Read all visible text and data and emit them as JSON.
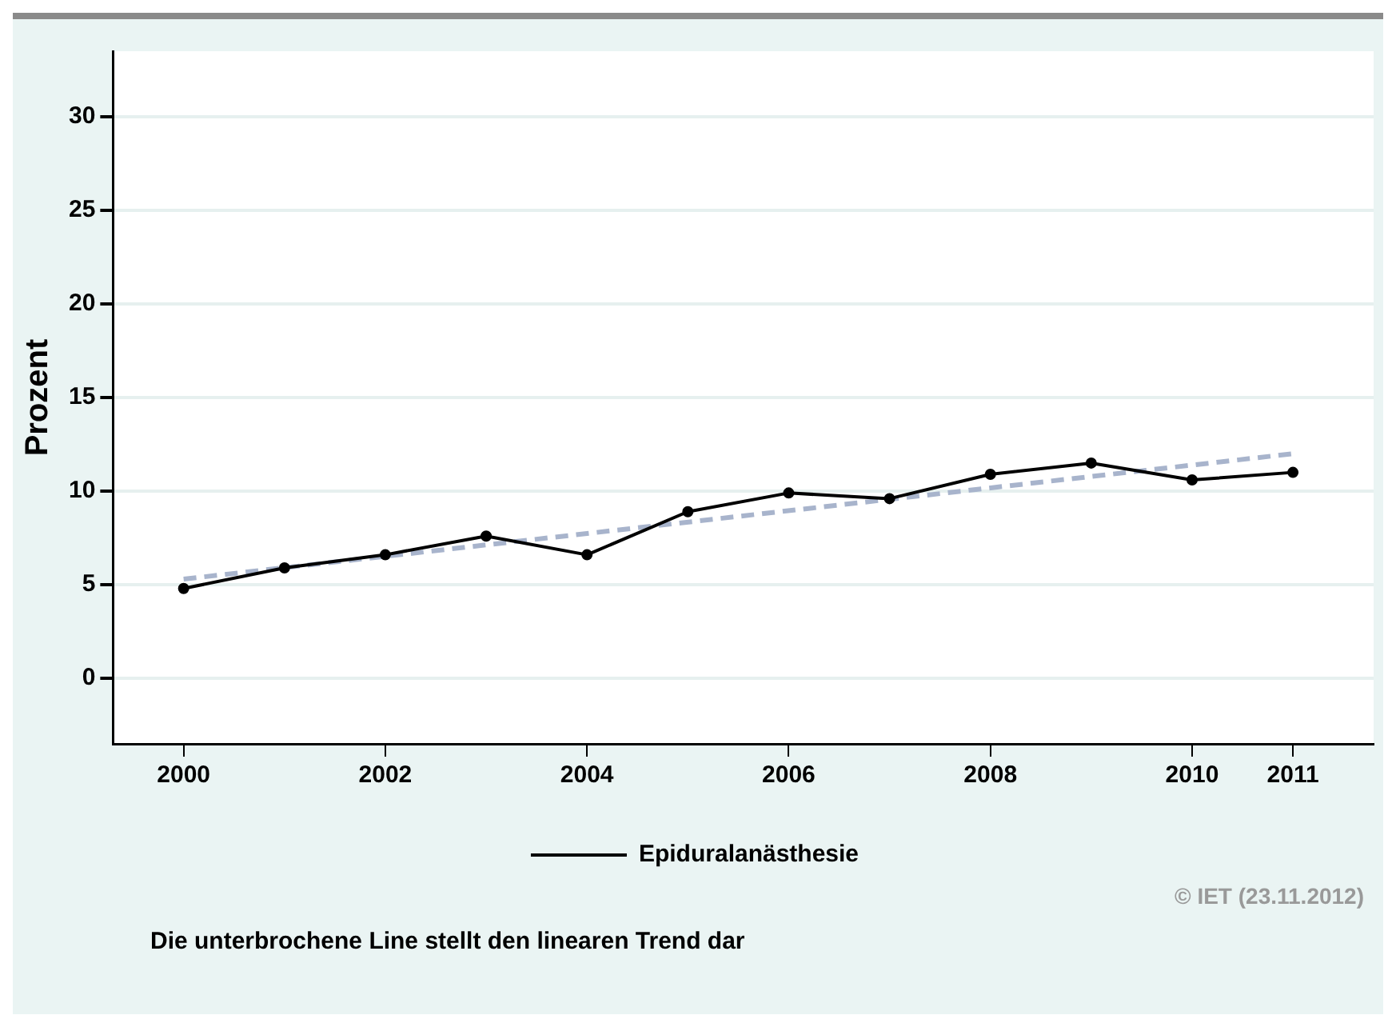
{
  "chart_data": {
    "type": "line",
    "ylabel": "Prozent",
    "x": [
      2000,
      2001,
      2002,
      2003,
      2004,
      2005,
      2006,
      2007,
      2008,
      2009,
      2010,
      2011
    ],
    "series": [
      {
        "name": "Epiduralanästhesie",
        "color": "#000000",
        "values": [
          4.8,
          5.9,
          6.6,
          7.6,
          6.6,
          8.9,
          9.9,
          9.6,
          10.9,
          11.5,
          10.6,
          11.0
        ],
        "marker": "circle",
        "line_style": "solid"
      },
      {
        "type": "line",
        "x": [
          2000,
          2011
        ],
        "color": "#a8b4cc",
        "values": [
          5.3,
          12.0
        ],
        "marker": "none",
        "line_style": "dashed"
      }
    ],
    "xlim": [
      1999.3,
      2011.8
    ],
    "xticks": [
      2000,
      2002,
      2004,
      2006,
      2008,
      2010,
      2011
    ],
    "ylim": [
      -3.5,
      33.5
    ],
    "yticks": [
      0,
      5,
      10,
      15,
      20,
      25,
      30
    ],
    "grid": "y",
    "legend": "bottom",
    "annotations": [
      "© IET (23.11.2012)",
      "Die unterbrochene Line stellt den linearen Trend dar"
    ]
  }
}
